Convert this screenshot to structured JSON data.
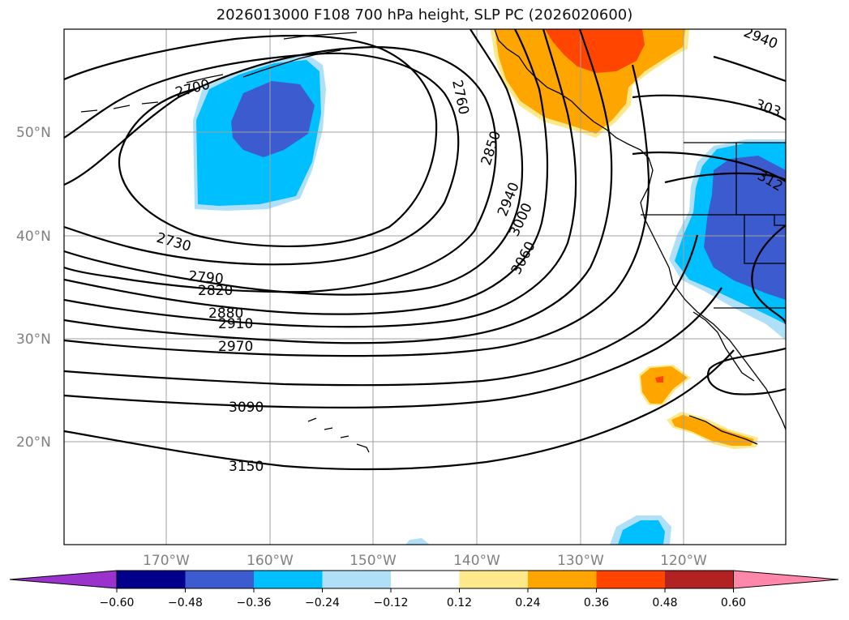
{
  "title": "2026013000 F108 700 hPa height, SLP PC (2026020600)",
  "lat_labels": [
    "50°N",
    "40°N",
    "30°N",
    "20°N"
  ],
  "lon_labels": [
    "170°W",
    "160°W",
    "150°W",
    "140°W",
    "130°W",
    "120°W"
  ],
  "contour_labels": [
    "2700",
    "2760",
    "2850",
    "2940",
    "3000",
    "3060",
    "2730",
    "2790",
    "2820",
    "2880",
    "2910",
    "2970",
    "3090",
    "3150",
    "2940",
    "303",
    "312"
  ],
  "colorbar": {
    "tick_labels": [
      "−0.60",
      "−0.48",
      "−0.36",
      "−0.24",
      "−0.12",
      "0.12",
      "0.24",
      "0.36",
      "0.48",
      "0.60"
    ],
    "colors": [
      "#9933cc",
      "#00008b",
      "#3b5bcf",
      "#00bfff",
      "#b0e0f8",
      "#ffffff",
      "#fde98a",
      "#ffa500",
      "#ff4500",
      "#b22222",
      "#ff88aa"
    ]
  }
}
